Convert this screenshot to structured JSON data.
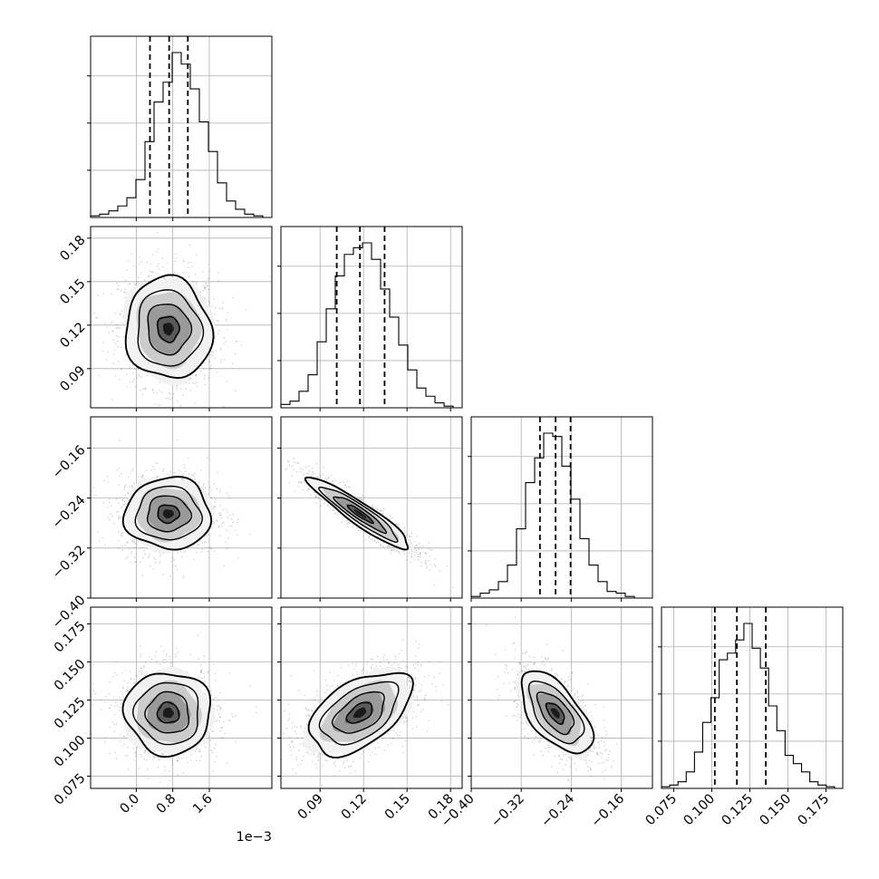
{
  "chart_data": {
    "type": "corner",
    "variables": [
      {
        "ticks": [
          0.0,
          0.8,
          1.6
        ],
        "tick_labels": [
          "0.0",
          "0.8",
          "1.6"
        ],
        "range": [
          -1.0,
          2.97
        ],
        "axis_offset_label": "1e−3",
        "quantiles": [
          0.3,
          0.72,
          1.13
        ],
        "hist": [
          1,
          2,
          4,
          7,
          12,
          23,
          46,
          70,
          82,
          100,
          93,
          78,
          58,
          40,
          21,
          10,
          5,
          2,
          1,
          0
        ]
      },
      {
        "ticks": [
          0.09,
          0.12,
          0.15,
          0.18
        ],
        "tick_labels": [
          "0.09",
          "0.12",
          "0.15",
          "0.18"
        ],
        "range": [
          0.063,
          0.188
        ],
        "quantiles": [
          0.1015,
          0.1175,
          0.1345
        ],
        "hist": [
          2,
          4,
          10,
          20,
          40,
          60,
          80,
          93,
          97,
          100,
          90,
          72,
          55,
          38,
          23,
          12,
          7,
          3,
          1,
          0
        ]
      },
      {
        "ticks": [
          -0.4,
          -0.32,
          -0.24,
          -0.16
        ],
        "tick_labels": [
          "−0.40",
          "−0.32",
          "−0.24",
          "−0.16"
        ],
        "range": [
          -0.4,
          -0.11
        ],
        "quantiles": [
          -0.29,
          -0.265,
          -0.241
        ],
        "hist": [
          1,
          3,
          5,
          10,
          20,
          42,
          70,
          85,
          100,
          98,
          80,
          60,
          36,
          20,
          10,
          4,
          3,
          1,
          0,
          0
        ]
      },
      {
        "ticks": [
          0.075,
          0.1,
          0.125,
          0.15,
          0.175
        ],
        "tick_labels": [
          "0.075",
          "0.100",
          "0.125",
          "0.150",
          "0.175"
        ],
        "range": [
          0.067,
          0.186
        ],
        "quantiles": [
          0.102,
          0.1165,
          0.1355
        ],
        "hist": [
          1,
          2,
          4,
          10,
          22,
          40,
          55,
          78,
          82,
          90,
          100,
          85,
          73,
          50,
          35,
          20,
          15,
          10,
          4,
          2,
          1,
          0
        ]
      }
    ],
    "pairs": [
      {
        "x": 0,
        "y": 1,
        "center": [
          0.7,
          0.1175
        ],
        "sd": [
          0.47,
          0.0175
        ],
        "corr": -0.05
      },
      {
        "x": 0,
        "y": 2,
        "center": [
          0.7,
          -0.265
        ],
        "sd": [
          0.47,
          0.0285
        ],
        "corr": 0.0
      },
      {
        "x": 1,
        "y": 2,
        "center": [
          0.1175,
          -0.265
        ],
        "sd": [
          0.0175,
          0.0285
        ],
        "corr": -0.93
      },
      {
        "x": 0,
        "y": 3,
        "center": [
          0.7,
          0.1165
        ],
        "sd": [
          0.47,
          0.0135
        ],
        "corr": -0.02
      },
      {
        "x": 1,
        "y": 3,
        "center": [
          0.1175,
          0.1165
        ],
        "sd": [
          0.0175,
          0.0135
        ],
        "corr": 0.5
      },
      {
        "x": 2,
        "y": 3,
        "center": [
          -0.265,
          0.1165
        ],
        "sd": [
          0.0285,
          0.0135
        ],
        "corr": -0.6
      }
    ],
    "grid": true,
    "contour_levels_sigma": [
      0.5,
      1.0,
      1.5,
      2.0
    ]
  }
}
